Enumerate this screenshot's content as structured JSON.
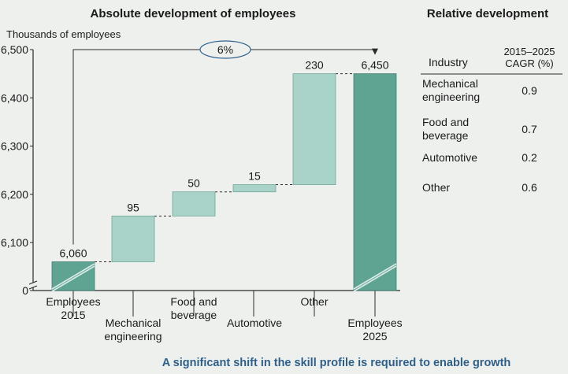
{
  "chart_data": {
    "type": "bar",
    "subtype": "waterfall",
    "title": "Absolute development of employees",
    "ylabel": "Thousands of employees",
    "ylim": [
      6000,
      6500
    ],
    "axis_break": true,
    "yticks": [
      {
        "value": 0,
        "label": "0"
      },
      {
        "value": 6100,
        "label": "6,100"
      },
      {
        "value": 6200,
        "label": "6,200"
      },
      {
        "value": 6300,
        "label": "6,300"
      },
      {
        "value": 6400,
        "label": "6,400"
      },
      {
        "value": 6500,
        "label": "6,500"
      }
    ],
    "bars": [
      {
        "label_lines": [
          "Employees",
          "2015"
        ],
        "kind": "total",
        "start": 0,
        "end": 6060,
        "value_label": "6,060"
      },
      {
        "label_lines": [
          "Mechanical",
          "engineering"
        ],
        "kind": "delta",
        "start": 6060,
        "end": 6155,
        "value_label": "95"
      },
      {
        "label_lines": [
          "Food and",
          "beverage"
        ],
        "kind": "delta",
        "start": 6155,
        "end": 6205,
        "value_label": "50"
      },
      {
        "label_lines": [
          "Automotive"
        ],
        "kind": "delta",
        "start": 6205,
        "end": 6220,
        "value_label": "15"
      },
      {
        "label_lines": [
          "Other"
        ],
        "kind": "delta",
        "start": 6220,
        "end": 6450,
        "value_label": "230"
      },
      {
        "label_lines": [
          "Employees",
          "2025"
        ],
        "kind": "total",
        "start": 0,
        "end": 6450,
        "value_label": "6,450"
      }
    ],
    "growth_annotation": "6%",
    "colors": {
      "total": "#5fa393",
      "delta": "#a9d2c8",
      "delta_edge": "#6fa898",
      "total_edge": "#3f7f70"
    }
  },
  "relative": {
    "title": "Relative development",
    "col_industry": "Industry",
    "col_cagr_lines": [
      "2015–2025",
      "CAGR (%)"
    ],
    "rows": [
      {
        "industry_lines": [
          "Mechanical",
          "engineering"
        ],
        "cagr": "0.9"
      },
      {
        "industry_lines": [
          "Food and",
          "beverage"
        ],
        "cagr": "0.7"
      },
      {
        "industry_lines": [
          "Automotive"
        ],
        "cagr": "0.2"
      },
      {
        "industry_lines": [
          "Other"
        ],
        "cagr": "0.6"
      }
    ]
  },
  "footer": "A significant shift in the skill profile is required to enable growth"
}
